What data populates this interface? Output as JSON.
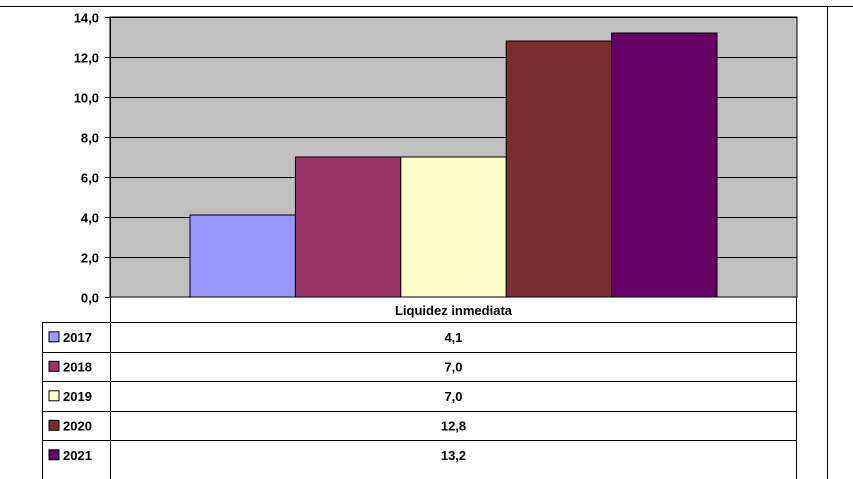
{
  "chart_data": {
    "type": "bar",
    "title": "",
    "xlabel": "",
    "ylabel": "",
    "categories": [
      "Liquidez inmediata"
    ],
    "series": [
      {
        "name": "2017",
        "values": [
          4.1
        ],
        "label": "4,1",
        "color": "#9999ff"
      },
      {
        "name": "2018",
        "values": [
          7.0
        ],
        "label": "7,0",
        "color": "#993366"
      },
      {
        "name": "2019",
        "values": [
          7.0
        ],
        "label": "7,0",
        "color": "#ffffcc"
      },
      {
        "name": "2020",
        "values": [
          12.8
        ],
        "label": "12,8",
        "color": "#7b2c2c"
      },
      {
        "name": "2021",
        "values": [
          13.2
        ],
        "label": "13,2",
        "color": "#660066"
      }
    ],
    "ylim": [
      0,
      14
    ],
    "yticks": [
      "0,0",
      "2,0",
      "4,0",
      "6,0",
      "8,0",
      "10,0",
      "12,0",
      "14,0"
    ],
    "grid": true,
    "legend": "data-table",
    "plot_background": "#c0c0c0"
  }
}
